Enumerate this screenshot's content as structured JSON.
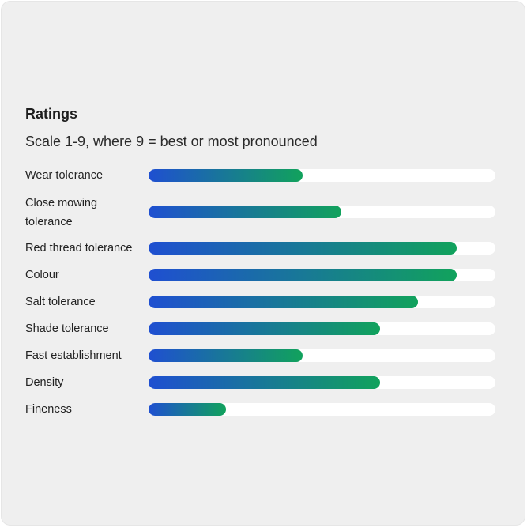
{
  "card": {
    "title": "Ratings",
    "subtitle": "Scale 1-9, where 9 = best or most pronounced"
  },
  "colors": {
    "card_background": "#efefef",
    "track": "#ffffff",
    "gradient_start": "#1f4fd1",
    "gradient_end": "#11a25c"
  },
  "chart_data": {
    "type": "bar",
    "orientation": "horizontal",
    "title": "Ratings",
    "subtitle": "Scale 1-9, where 9 = best or most pronounced",
    "xlim": [
      0,
      9
    ],
    "grid": false,
    "categories": [
      "Wear tolerance",
      "Close mowing tolerance",
      "Red thread tolerance",
      "Colour",
      "Salt tolerance",
      "Shade tolerance",
      "Fast establishment",
      "Density",
      "Fineness"
    ],
    "values": [
      4,
      5,
      8,
      8,
      7,
      6,
      4,
      6,
      2
    ]
  }
}
